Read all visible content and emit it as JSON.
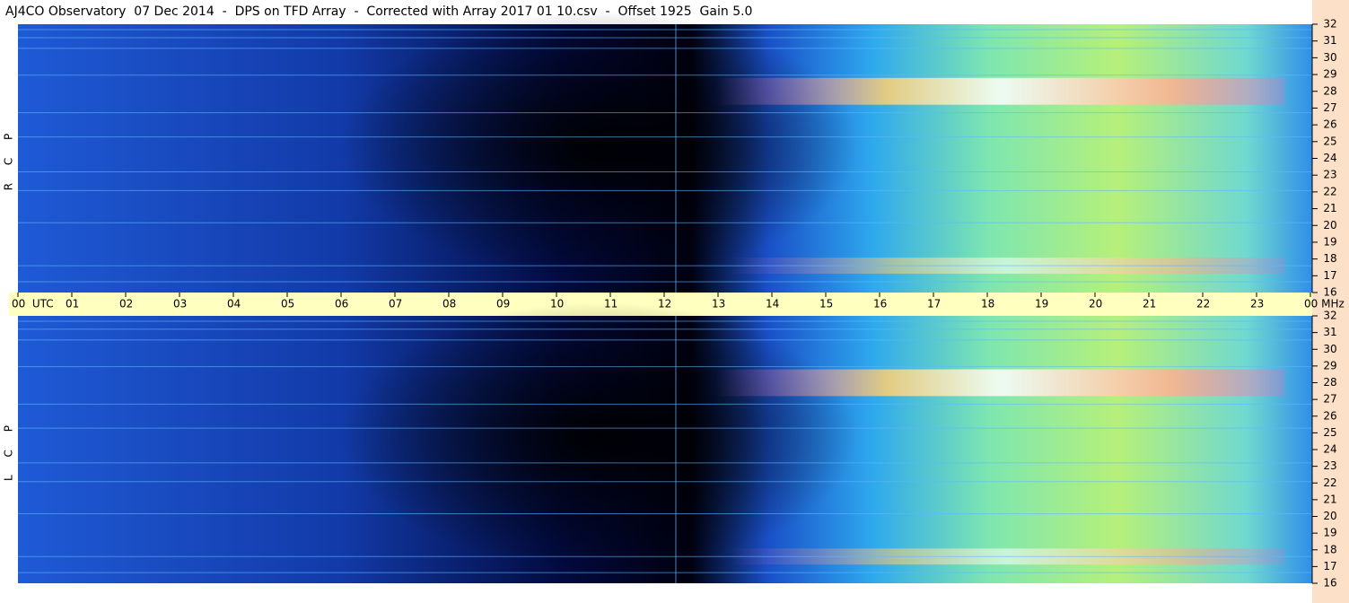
{
  "title": "AJ4CO Observatory  07 Dec 2014  -  DPS on TFD Array  -  Corrected with Array 2017 01 10.csv  -  Offset 1925  Gain 5.0",
  "chart_data": [
    {
      "type": "spectrogram",
      "ylabel": "R C P",
      "ylim": [
        16,
        32
      ],
      "yticks": [
        16,
        17,
        18,
        19,
        20,
        21,
        22,
        23,
        24,
        25,
        26,
        27,
        28,
        29,
        30,
        31,
        32
      ],
      "xlim": [
        0,
        24
      ],
      "xticks": [
        {
          "value": 0,
          "label": "00  UTC"
        },
        {
          "value": 1,
          "label": "01"
        },
        {
          "value": 2,
          "label": "02"
        },
        {
          "value": 3,
          "label": "03"
        },
        {
          "value": 4,
          "label": "04"
        },
        {
          "value": 5,
          "label": "05"
        },
        {
          "value": 6,
          "label": "06"
        },
        {
          "value": 7,
          "label": "07"
        },
        {
          "value": 8,
          "label": "08"
        },
        {
          "value": 9,
          "label": "09"
        },
        {
          "value": 10,
          "label": "10"
        },
        {
          "value": 11,
          "label": "11"
        },
        {
          "value": 12,
          "label": "12"
        },
        {
          "value": 13,
          "label": "13"
        },
        {
          "value": 14,
          "label": "14"
        },
        {
          "value": 15,
          "label": "15"
        },
        {
          "value": 16,
          "label": "16"
        },
        {
          "value": 17,
          "label": "17"
        },
        {
          "value": 18,
          "label": "18"
        },
        {
          "value": 19,
          "label": "19"
        },
        {
          "value": 20,
          "label": "20"
        },
        {
          "value": 21,
          "label": "21"
        },
        {
          "value": 22,
          "label": "22"
        },
        {
          "value": 23,
          "label": "23"
        },
        {
          "value": 24,
          "label": "00 MHz"
        }
      ]
    },
    {
      "type": "spectrogram",
      "ylabel": "L C P",
      "ylim": [
        16,
        32
      ],
      "yticks": [
        16,
        17,
        18,
        19,
        20,
        21,
        22,
        23,
        24,
        25,
        26,
        27,
        28,
        29,
        30,
        31,
        32
      ]
    }
  ]
}
